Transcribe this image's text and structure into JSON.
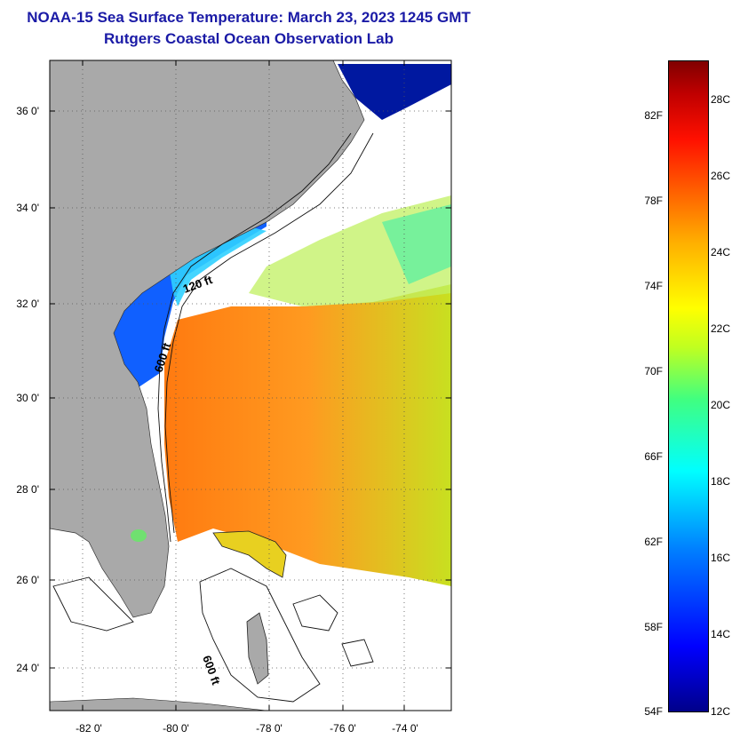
{
  "title_line1": "NOAA-15 Sea Surface Temperature:  March 23, 2023 1245 GMT",
  "title_line2": "Rutgers Coastal Ocean Observation Lab",
  "lat_labels": [
    "36 0'",
    "34 0'",
    "32 0'",
    "30 0'",
    "28 0'",
    "26 0'",
    "24 0'"
  ],
  "lon_labels": [
    "-82 0'",
    "-80 0'",
    "-78 0'",
    "-76 0'",
    "-74 0'"
  ],
  "contour_labels": [
    "120 ft",
    "600 ft",
    "600 ft"
  ],
  "colorbar": {
    "fahrenheit": [
      "82F",
      "78F",
      "74F",
      "70F",
      "66F",
      "62F",
      "58F",
      "54F"
    ],
    "celsius": [
      "28C",
      "26C",
      "24C",
      "22C",
      "20C",
      "18C",
      "16C",
      "14C",
      "12C"
    ],
    "min_label": "54F",
    "max_color": "#800000",
    "min_color": "#00008a"
  },
  "colors": {
    "title": "#1a1aa6",
    "land": "#a9a9a9",
    "warm_water": "#ff7a1a",
    "cold_water": "#0050ff"
  }
}
